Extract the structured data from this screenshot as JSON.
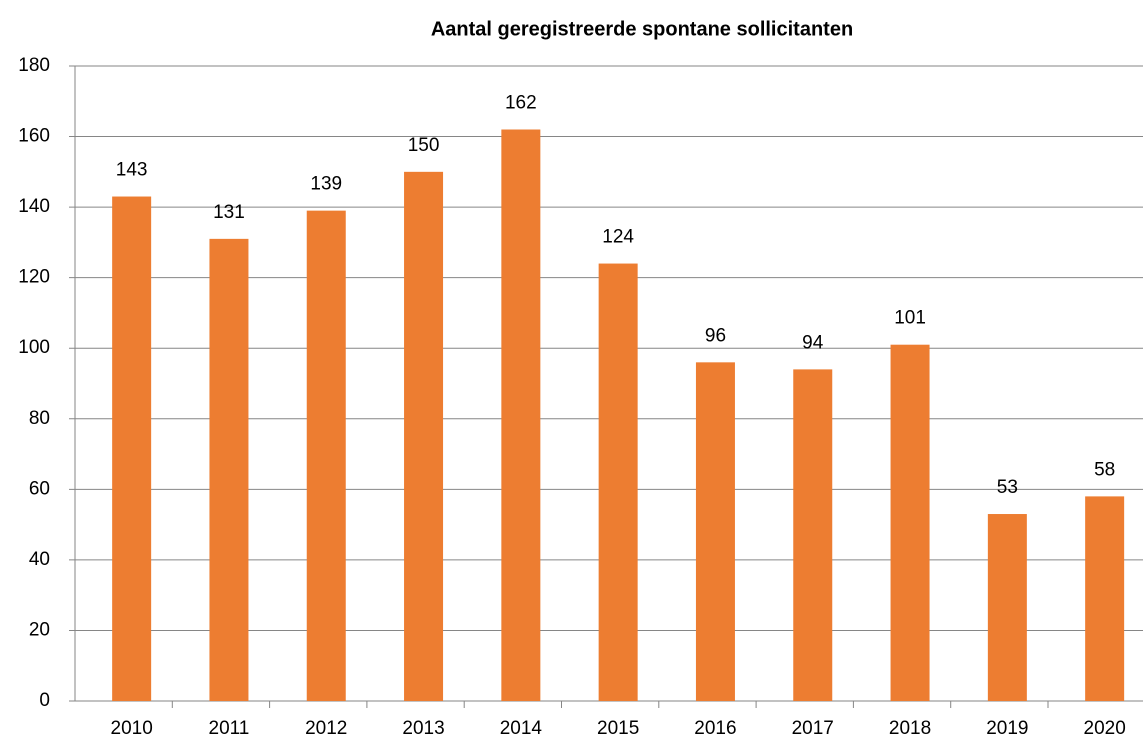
{
  "chart_data": {
    "type": "bar",
    "title": "Aantal geregistreerde spontane sollicitanten",
    "categories": [
      "2010",
      "2011",
      "2012",
      "2013",
      "2014",
      "2015",
      "2016",
      "2017",
      "2018",
      "2019",
      "2020"
    ],
    "values": [
      143,
      131,
      139,
      150,
      162,
      124,
      96,
      94,
      101,
      53,
      58
    ],
    "color": "#ed7d31",
    "ylim": [
      0,
      180
    ],
    "yticks": [
      0,
      20,
      40,
      60,
      80,
      100,
      120,
      140,
      160,
      180
    ],
    "grid": true
  }
}
